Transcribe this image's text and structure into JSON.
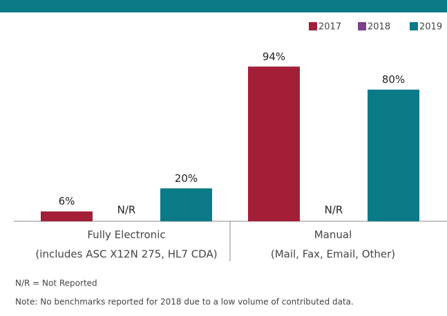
{
  "chart_data": {
    "type": "bar",
    "categories": [
      [
        "Fully Electronic",
        "(includes ASC X12N 275, HL7 CDA)"
      ],
      [
        "Manual",
        "(Mail, Fax, Email, Other)"
      ]
    ],
    "series": [
      {
        "name": "2017",
        "color": "#a31f37",
        "values": [
          6,
          94
        ],
        "value_labels": [
          "6%",
          "94%"
        ]
      },
      {
        "name": "2018",
        "color": "#7b3f8c",
        "values": [
          null,
          null
        ],
        "value_labels": [
          "N/R",
          "N/R"
        ]
      },
      {
        "name": "2019",
        "color": "#0b7a87",
        "values": [
          20,
          80
        ],
        "value_labels": [
          "20%",
          "80%"
        ]
      }
    ],
    "legend": "top-right",
    "notes": [
      "N/R = Not Reported",
      "Note: No benchmarks reported for 2018 due to a low volume of contributed data."
    ]
  }
}
